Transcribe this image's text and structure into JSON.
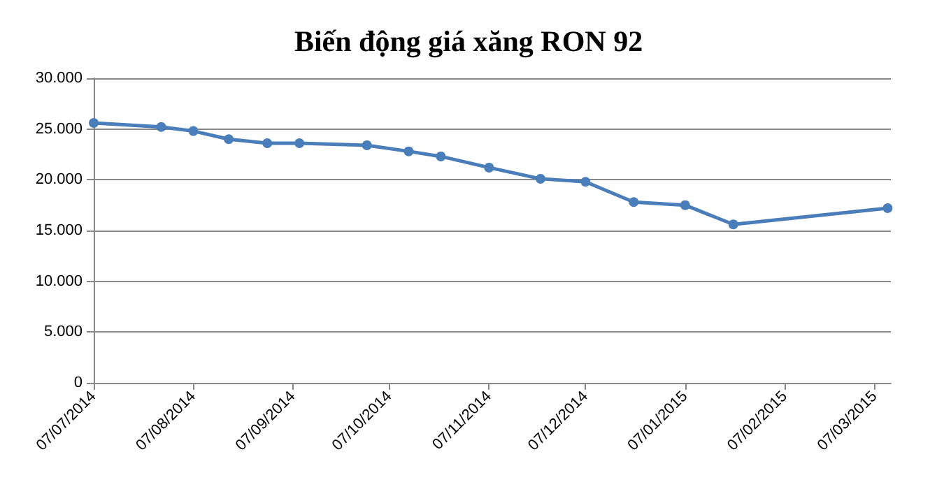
{
  "chart_data": {
    "type": "line",
    "title": "Biến động giá xăng RON 92",
    "x": [
      "2014-07-07",
      "2014-07-28",
      "2014-08-07",
      "2014-08-18",
      "2014-08-30",
      "2014-09-09",
      "2014-09-30",
      "2014-10-13",
      "2014-10-23",
      "2014-11-07",
      "2014-11-23",
      "2014-12-07",
      "2014-12-22",
      "2015-01-07",
      "2015-01-22",
      "2015-03-11"
    ],
    "series": [
      {
        "color": "#4a7ebb",
        "values": [
          25600,
          25200,
          24800,
          24000,
          23600,
          23600,
          23400,
          22800,
          22300,
          21200,
          20100,
          19800,
          17800,
          17500,
          15600,
          17200
        ]
      }
    ],
    "xlim": [
      "2014-07-07",
      "2015-03-12"
    ],
    "xticks": [
      {
        "value": "2014-07-07",
        "label": "07/07/2014"
      },
      {
        "value": "2014-08-07",
        "label": "07/08/2014"
      },
      {
        "value": "2014-09-07",
        "label": "07/09/2014"
      },
      {
        "value": "2014-10-07",
        "label": "07/10/2014"
      },
      {
        "value": "2014-11-07",
        "label": "07/11/2014"
      },
      {
        "value": "2014-12-07",
        "label": "07/12/2014"
      },
      {
        "value": "2015-01-07",
        "label": "07/01/2015"
      },
      {
        "value": "2015-02-07",
        "label": "07/02/2015"
      },
      {
        "value": "2015-03-07",
        "label": "07/03/2015"
      }
    ],
    "ylim": [
      0,
      30000
    ],
    "yticks": [
      {
        "value": 0,
        "label": "0"
      },
      {
        "value": 5000,
        "label": "5.000"
      },
      {
        "value": 10000,
        "label": "10.000"
      },
      {
        "value": 15000,
        "label": "15.000"
      },
      {
        "value": 20000,
        "label": "20.000"
      },
      {
        "value": 25000,
        "label": "25.000"
      },
      {
        "value": 30000,
        "label": "30.000"
      }
    ],
    "grid": "y",
    "marker": "circle",
    "line_style": "solid"
  }
}
